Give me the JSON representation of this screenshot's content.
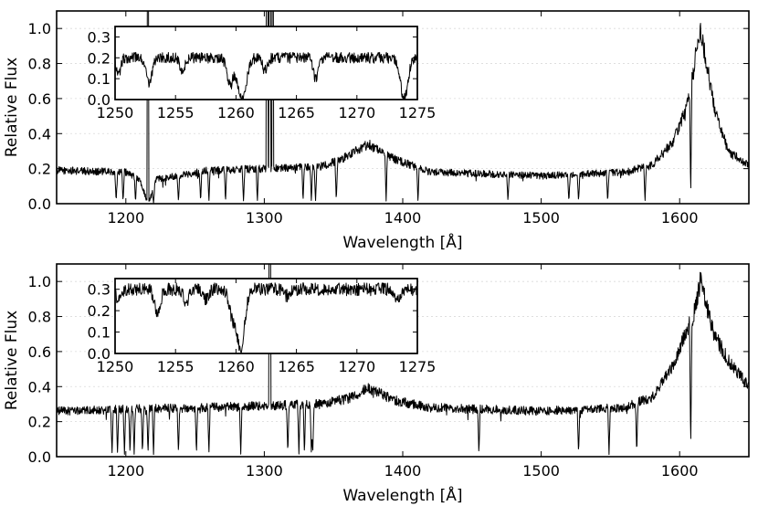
{
  "chart_data": [
    {
      "type": "line",
      "panel": "top",
      "xlabel": "Wavelength [Å]",
      "ylabel": "Relative Flux",
      "xlim": [
        1150,
        1650
      ],
      "ylim": [
        0.0,
        1.1
      ],
      "xticks": [
        1200,
        1300,
        1400,
        1500,
        1600
      ],
      "yticks": [
        0.0,
        0.2,
        0.4,
        0.6,
        0.8,
        1.0
      ],
      "xtick_labels": [
        "1200",
        "1300",
        "1400",
        "1500",
        "1600"
      ],
      "ytick_labels": [
        "0.0",
        "0.2",
        "0.4",
        "0.6",
        "0.8",
        "1.0"
      ],
      "grid": "horizontal-dotted",
      "continuum_anchors": {
        "x": [
          1150,
          1200,
          1210,
          1216,
          1222,
          1260,
          1300,
          1340,
          1355,
          1375,
          1395,
          1420,
          1500,
          1560,
          1580,
          1595,
          1605,
          1615,
          1625,
          1635,
          1650
        ],
        "y": [
          0.19,
          0.18,
          0.14,
          0.0,
          0.14,
          0.19,
          0.2,
          0.21,
          0.25,
          0.34,
          0.25,
          0.18,
          0.16,
          0.18,
          0.22,
          0.35,
          0.55,
          1.0,
          0.55,
          0.3,
          0.22
        ]
      },
      "absorption_lines": [
        1193,
        1198,
        1207,
        1220,
        1238,
        1254,
        1260,
        1272,
        1285,
        1295,
        1328,
        1334,
        1337,
        1352,
        1388,
        1411,
        1476,
        1520,
        1527,
        1548,
        1575,
        1608
      ],
      "emission_spikes": [
        1216,
        1302,
        1304,
        1306
      ],
      "inset": {
        "xlim": [
          1250,
          1275
        ],
        "ylim": [
          0.0,
          0.35
        ],
        "xticks": [
          1250,
          1255,
          1260,
          1265,
          1270,
          1275
        ],
        "yticks": [
          0.0,
          0.1,
          0.2,
          0.3
        ],
        "xtick_labels": [
          "1250",
          "1255",
          "1260",
          "1265",
          "1270",
          "1275"
        ],
        "ytick_labels": [
          "0.0",
          "0.1",
          "0.2",
          "0.3"
        ],
        "continuum": 0.2,
        "dips": [
          {
            "x": 1250.3,
            "depth": 0.08,
            "width": 0.25
          },
          {
            "x": 1252.8,
            "depth": 0.12,
            "width": 0.35
          },
          {
            "x": 1255.6,
            "depth": 0.06,
            "width": 0.3
          },
          {
            "x": 1259.5,
            "depth": 0.13,
            "width": 0.35
          },
          {
            "x": 1260.5,
            "depth": 0.2,
            "width": 0.5
          },
          {
            "x": 1262.4,
            "depth": 0.06,
            "width": 0.3
          },
          {
            "x": 1266.6,
            "depth": 0.1,
            "width": 0.3
          },
          {
            "x": 1273.9,
            "depth": 0.19,
            "width": 0.45
          }
        ]
      }
    },
    {
      "type": "line",
      "panel": "bottom",
      "xlabel": "Wavelength [Å]",
      "ylabel": "Relative Flux",
      "xlim": [
        1150,
        1650
      ],
      "ylim": [
        0.0,
        1.1
      ],
      "xticks": [
        1200,
        1300,
        1400,
        1500,
        1600
      ],
      "yticks": [
        0.0,
        0.2,
        0.4,
        0.6,
        0.8,
        1.0
      ],
      "xtick_labels": [
        "1200",
        "1300",
        "1400",
        "1500",
        "1600"
      ],
      "ytick_labels": [
        "0.0",
        "0.2",
        "0.4",
        "0.6",
        "0.8",
        "1.0"
      ],
      "grid": "horizontal-dotted",
      "continuum_anchors": {
        "x": [
          1150,
          1200,
          1250,
          1300,
          1340,
          1360,
          1375,
          1395,
          1420,
          1500,
          1560,
          1580,
          1595,
          1605,
          1610,
          1615,
          1625,
          1635,
          1650
        ],
        "y": [
          0.26,
          0.27,
          0.28,
          0.29,
          0.3,
          0.33,
          0.39,
          0.32,
          0.28,
          0.26,
          0.28,
          0.34,
          0.52,
          0.72,
          0.8,
          1.0,
          0.7,
          0.55,
          0.4
        ]
      },
      "absorption_lines": [
        1190,
        1194,
        1199,
        1203,
        1206,
        1212,
        1216,
        1220,
        1238,
        1251,
        1260,
        1283,
        1317,
        1325,
        1329,
        1334,
        1335,
        1455,
        1527,
        1549,
        1569,
        1608
      ],
      "emission_spikes": [
        1304
      ],
      "inset": {
        "xlim": [
          1250,
          1275
        ],
        "ylim": [
          0.0,
          0.35
        ],
        "xticks": [
          1250,
          1255,
          1260,
          1265,
          1270,
          1275
        ],
        "yticks": [
          0.0,
          0.1,
          0.2,
          0.3
        ],
        "xtick_labels": [
          "1250",
          "1255",
          "1260",
          "1265",
          "1270",
          "1275"
        ],
        "ytick_labels": [
          "0.0",
          "0.1",
          "0.2",
          "0.3"
        ],
        "continuum": 0.3,
        "dips": [
          {
            "x": 1250.3,
            "depth": 0.05,
            "width": 0.3
          },
          {
            "x": 1253.5,
            "depth": 0.11,
            "width": 0.35
          },
          {
            "x": 1255.9,
            "depth": 0.06,
            "width": 0.3
          },
          {
            "x": 1257.5,
            "depth": 0.05,
            "width": 0.3
          },
          {
            "x": 1259.7,
            "depth": 0.12,
            "width": 0.4
          },
          {
            "x": 1260.4,
            "depth": 0.27,
            "width": 0.45
          },
          {
            "x": 1264.2,
            "depth": 0.03,
            "width": 0.3
          },
          {
            "x": 1273.3,
            "depth": 0.06,
            "width": 0.35
          }
        ]
      }
    }
  ]
}
